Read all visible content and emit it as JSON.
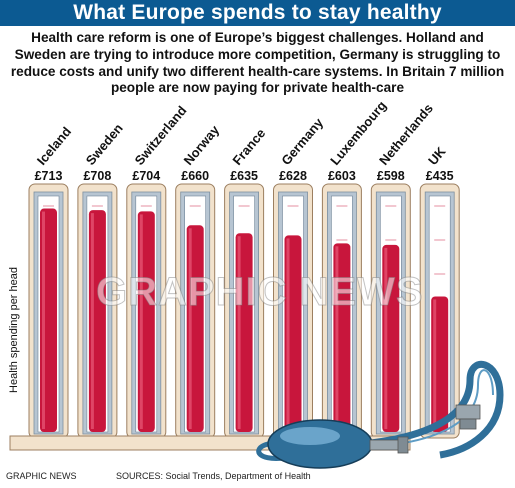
{
  "header": {
    "title": "What Europe spends to stay healthy",
    "intro": "Health care reform is one of Europe’s biggest challenges. Holland and Sweden are trying to introduce more competition, Germany is struggling to reduce costs and unify two different health-care systems. In Britain 7 million people are now paying for private health-care"
  },
  "chart_data": {
    "type": "bar",
    "categories": [
      "Iceland",
      "Sweden",
      "Switzerland",
      "Norway",
      "France",
      "Germany",
      "Luxembourg",
      "Netherlands",
      "UK"
    ],
    "values": [
      713,
      708,
      704,
      660,
      635,
      628,
      603,
      598,
      435
    ],
    "value_labels": [
      "£713",
      "£708",
      "£704",
      "£660",
      "£635",
      "£628",
      "£603",
      "£598",
      "£435"
    ],
    "ylabel": "Health spending per head",
    "colors": {
      "mercury": "#c8163c",
      "tube_frame": "#b7c5d2",
      "panel": "#f2e2cc",
      "panel_border": "#9c7f60",
      "pump": "#2f6f99"
    }
  },
  "footer": {
    "credit": "GRAPHIC NEWS",
    "sources": "SOURCES: Social Trends, Department of Health"
  },
  "watermark": "GRAPHIC NEWS"
}
